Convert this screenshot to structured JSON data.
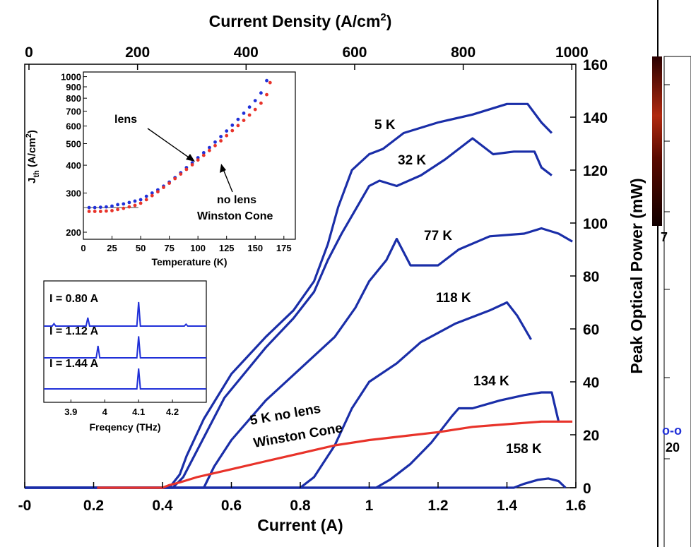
{
  "chart_data": [
    {
      "type": "line",
      "title": "Current Density (A/cm2)",
      "title_main": "Current Density (A/cm",
      "title_sup": "2",
      "title_end": ")",
      "xlabel": "Current (A)",
      "ylabel": "Peak Optical Power (mW)",
      "xlim": [
        0,
        1.6
      ],
      "ylim": [
        0,
        160
      ],
      "x_ticks": [
        "-0",
        "0.2",
        "0.4",
        "0.6",
        "0.8",
        "1",
        "1.2",
        "1.4",
        "1.6"
      ],
      "y_ticks": [
        "0",
        "20",
        "40",
        "60",
        "80",
        "100",
        "120",
        "140",
        "160"
      ],
      "top_axis": {
        "range": [
          0,
          1000
        ],
        "ticks": [
          "0",
          "200",
          "400",
          "600",
          "800",
          "1000"
        ]
      },
      "grid": false,
      "series": [
        {
          "name": "5 K",
          "color": "#1a2ea8",
          "x": [
            0.0,
            0.42,
            0.45,
            0.47,
            0.52,
            0.6,
            0.7,
            0.78,
            0.84,
            0.88,
            0.91,
            0.95,
            1.0,
            1.04,
            1.1,
            1.2,
            1.3,
            1.4,
            1.46,
            1.5,
            1.53
          ],
          "y": [
            0,
            0,
            5,
            12,
            26,
            43,
            57,
            67,
            78,
            92,
            106,
            120,
            126,
            128,
            134,
            138,
            141,
            145,
            145,
            138,
            134
          ]
        },
        {
          "name": "32 K",
          "color": "#1a2ea8",
          "x": [
            0.0,
            0.43,
            0.46,
            0.5,
            0.58,
            0.7,
            0.78,
            0.84,
            0.88,
            0.92,
            0.96,
            1.0,
            1.03,
            1.08,
            1.15,
            1.22,
            1.3,
            1.36,
            1.42,
            1.48,
            1.5,
            1.53
          ],
          "y": [
            0,
            0,
            4,
            14,
            34,
            53,
            64,
            74,
            86,
            96,
            105,
            114,
            116,
            114,
            118,
            124,
            132,
            126,
            127,
            127,
            121,
            118
          ]
        },
        {
          "name": "77 K",
          "color": "#1a2ea8",
          "x": [
            0.0,
            0.52,
            0.55,
            0.6,
            0.7,
            0.8,
            0.9,
            0.96,
            1.0,
            1.05,
            1.08,
            1.12,
            1.2,
            1.26,
            1.35,
            1.45,
            1.5,
            1.55,
            1.59
          ],
          "y": [
            0,
            0,
            8,
            18,
            33,
            45,
            57,
            68,
            78,
            86,
            94,
            84,
            84,
            90,
            95,
            96,
            98,
            96,
            93
          ]
        },
        {
          "name": "118 K",
          "color": "#1a2ea8",
          "x": [
            0.0,
            0.8,
            0.84,
            0.9,
            0.95,
            1.0,
            1.08,
            1.15,
            1.25,
            1.35,
            1.4,
            1.43,
            1.47
          ],
          "y": [
            0,
            0,
            4,
            16,
            30,
            40,
            47,
            55,
            62,
            67,
            70,
            65,
            56
          ]
        },
        {
          "name": "134 K",
          "color": "#1a2ea8",
          "x": [
            0.0,
            1.02,
            1.06,
            1.12,
            1.18,
            1.24,
            1.26,
            1.3,
            1.38,
            1.45,
            1.5,
            1.53,
            1.55
          ],
          "y": [
            0,
            0,
            3,
            9,
            17,
            27,
            30,
            30,
            33,
            35,
            36,
            36,
            25
          ]
        },
        {
          "name": "158 K",
          "color": "#1a2ea8",
          "x": [
            0.0,
            1.42,
            1.45,
            1.49,
            1.52,
            1.55,
            1.57
          ],
          "y": [
            0,
            0,
            1.5,
            3,
            3.5,
            2.5,
            0
          ]
        },
        {
          "name": "5 K no lens Winston Cone",
          "color": "#e8332a",
          "x": [
            0.21,
            0.4,
            0.42,
            0.45,
            0.5,
            0.6,
            0.7,
            0.8,
            0.9,
            1.0,
            1.1,
            1.2,
            1.3,
            1.4,
            1.5,
            1.59
          ],
          "y": [
            0,
            0,
            1,
            2,
            4,
            7,
            10,
            13,
            16,
            18,
            19.5,
            21,
            23,
            24,
            25,
            25
          ]
        }
      ],
      "annotations": [
        "5 K",
        "32 K",
        "77 K",
        "118 K",
        "134 K",
        "158 K",
        "5 K no lens",
        "Winston Cone"
      ]
    },
    {
      "type": "scatter",
      "title": "",
      "xlabel": "Temperature (K)",
      "ylabel_main": "J",
      "ylabel_sub": "th",
      "ylabel_rest": " (A/cm",
      "ylabel_sup": "2",
      "ylabel_end": ")",
      "xlim": [
        0,
        185
      ],
      "ylim": [
        200,
        1000
      ],
      "y_scale": "log",
      "x_ticks": [
        "0",
        "25",
        "50",
        "75",
        "100",
        "125",
        "150",
        "175"
      ],
      "y_ticks": [
        "200",
        "300",
        "400",
        "500",
        "600",
        "700",
        "800",
        "900",
        "1000"
      ],
      "series": [
        {
          "name": "lens",
          "color": "#2030d8",
          "x": [
            5,
            10,
            15,
            20,
            25,
            30,
            35,
            40,
            45,
            50,
            55,
            60,
            65,
            70,
            75,
            80,
            85,
            90,
            95,
            100,
            105,
            110,
            115,
            120,
            125,
            130,
            135,
            140,
            145,
            150,
            155,
            160
          ],
          "y": [
            258,
            258,
            259,
            260,
            262,
            266,
            268,
            272,
            276,
            280,
            290,
            300,
            310,
            322,
            336,
            352,
            370,
            390,
            410,
            432,
            455,
            480,
            508,
            538,
            570,
            605,
            643,
            685,
            730,
            780,
            845,
            960
          ]
        },
        {
          "name": "no lens Winston Cone",
          "color": "#e8332a",
          "x": [
            5,
            10,
            15,
            20,
            25,
            30,
            35,
            40,
            45,
            50,
            55,
            60,
            65,
            70,
            75,
            80,
            85,
            90,
            95,
            100,
            105,
            110,
            115,
            120,
            125,
            130,
            135,
            140,
            145,
            150,
            155,
            160,
            163
          ],
          "y": [
            248,
            248,
            248,
            249,
            250,
            253,
            256,
            260,
            264,
            270,
            280,
            292,
            304,
            318,
            332,
            348,
            365,
            383,
            402,
            422,
            443,
            466,
            490,
            515,
            543,
            572,
            603,
            636,
            672,
            712,
            760,
            830,
            940
          ]
        }
      ],
      "annotations": [
        "lens",
        "no lens",
        "Winston Cone"
      ]
    },
    {
      "type": "line",
      "title": "",
      "xlabel": "Freqency (THz)",
      "xlim": [
        3.82,
        4.3
      ],
      "x_ticks": [
        "3.9",
        "4",
        "4.1",
        "4.2"
      ],
      "series": [
        {
          "name": "I = 0.80 A",
          "color": "#2030d8",
          "x": [
            3.82,
            3.95,
            4.1,
            4.24,
            4.3
          ],
          "peaks": [
            [
              3.95,
              0.35
            ],
            [
              4.1,
              1.0
            ],
            [
              3.85,
              0.1
            ],
            [
              4.24,
              0.08
            ]
          ]
        },
        {
          "name": "I = 1.12 A",
          "color": "#2030d8",
          "x": [
            3.82,
            3.98,
            4.1,
            4.3
          ],
          "peaks": [
            [
              3.98,
              0.5
            ],
            [
              4.1,
              0.9
            ]
          ]
        },
        {
          "name": "I = 1.44 A",
          "color": "#2030d8",
          "x": [
            3.82,
            4.1,
            4.3
          ],
          "peaks": [
            [
              4.1,
              0.85
            ]
          ]
        }
      ]
    }
  ],
  "side_panel": {
    "colorbar_label": "7",
    "tick_label": "20",
    "marker": "o-o"
  }
}
